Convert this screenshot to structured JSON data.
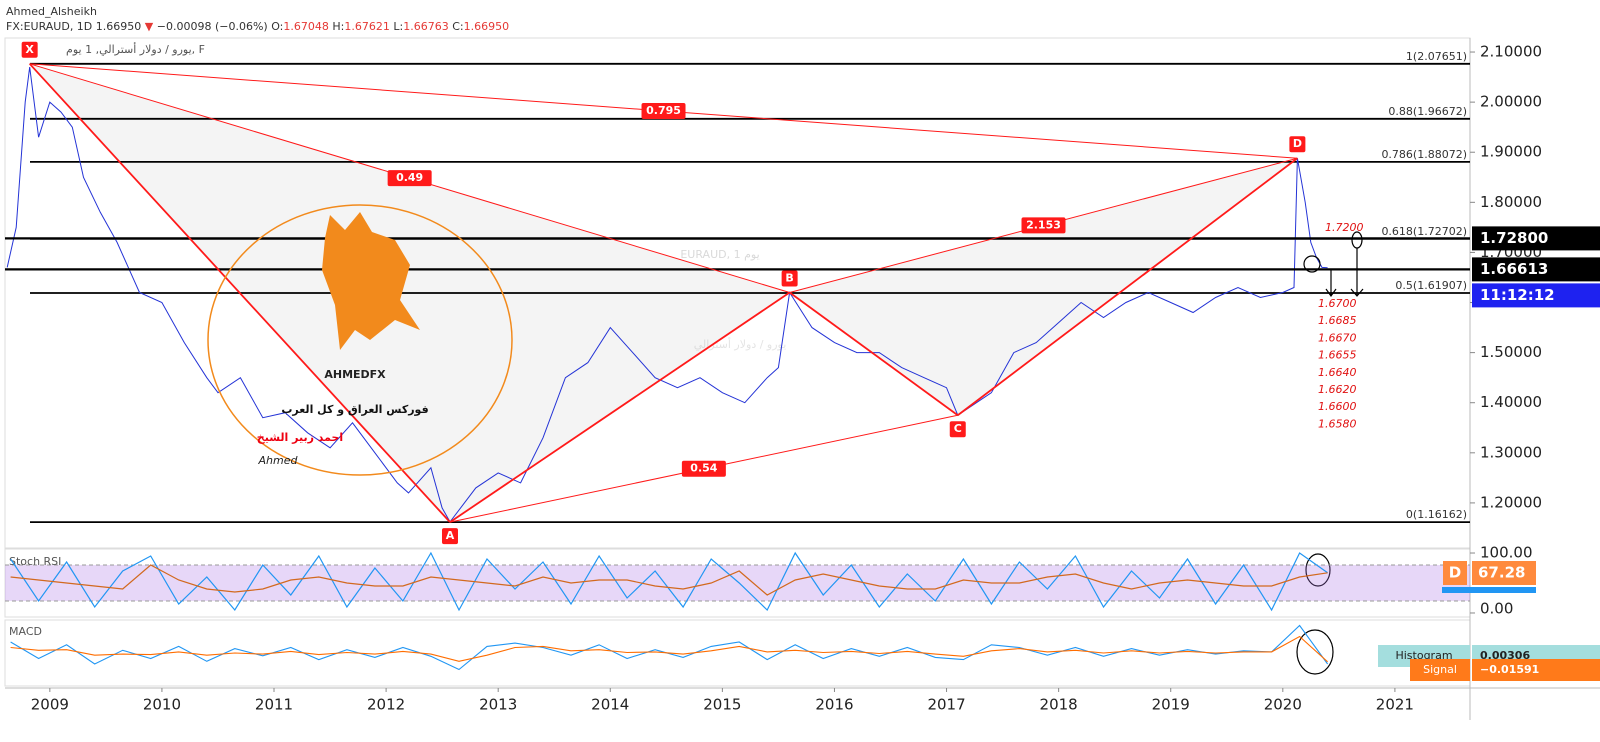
{
  "header": {
    "author": "Ahmed_Alsheikh",
    "symbol": "FX:EURAUD, 1D",
    "last": "1.66950",
    "arrow": "▼",
    "change": "−0.00098 (−0.06%)",
    "ohlc": [
      {
        "label": "O:",
        "value": "1.67048"
      },
      {
        "label": "H:",
        "value": "1.67621"
      },
      {
        "label": "L:",
        "value": "1.66763"
      },
      {
        "label": "C:",
        "value": "1.66950"
      }
    ]
  },
  "logo": {
    "brand": "AHMEDFX",
    "tagline": "فوركس العراق و كل العرب",
    "name": "احمد زبير الشيخ",
    "signature": "Ahmed"
  },
  "chart_data": [
    {
      "type": "line",
      "legend_text": "يورو / دولار أسترالي, 1 يوم, F",
      "watermark": [
        "EURAUD, 1 يوم",
        "يورو / دولار أسترالي"
      ],
      "x": [
        2008.62,
        2008.7,
        2008.78,
        2008.82,
        2008.9,
        2009.0,
        2009.1,
        2009.2,
        2009.3,
        2009.45,
        2009.6,
        2009.8,
        2010.0,
        2010.2,
        2010.4,
        2010.5,
        2010.7,
        2010.9,
        2011.1,
        2011.3,
        2011.5,
        2011.7,
        2011.9,
        2012.1,
        2012.2,
        2012.4,
        2012.5,
        2012.57,
        2012.8,
        2013.0,
        2013.2,
        2013.4,
        2013.6,
        2013.8,
        2014.0,
        2014.2,
        2014.4,
        2014.6,
        2014.8,
        2015.0,
        2015.2,
        2015.4,
        2015.5,
        2015.6,
        2015.8,
        2016.0,
        2016.2,
        2016.4,
        2016.6,
        2016.8,
        2017.0,
        2017.1,
        2017.4,
        2017.6,
        2017.8,
        2018.0,
        2018.2,
        2018.4,
        2018.6,
        2018.8,
        2019.0,
        2019.2,
        2019.4,
        2019.6,
        2019.8,
        2020.0,
        2020.1,
        2020.13,
        2020.2,
        2020.25,
        2020.3,
        2020.35,
        2020.4
      ],
      "series": [
        {
          "color": "#2433d6",
          "values": [
            1.67,
            1.75,
            2.0,
            2.07,
            1.93,
            2.0,
            1.98,
            1.95,
            1.85,
            1.78,
            1.72,
            1.62,
            1.6,
            1.52,
            1.45,
            1.42,
            1.45,
            1.37,
            1.38,
            1.34,
            1.31,
            1.36,
            1.3,
            1.24,
            1.22,
            1.27,
            1.19,
            1.162,
            1.23,
            1.26,
            1.24,
            1.33,
            1.45,
            1.48,
            1.55,
            1.5,
            1.45,
            1.43,
            1.45,
            1.42,
            1.4,
            1.45,
            1.47,
            1.62,
            1.55,
            1.52,
            1.5,
            1.5,
            1.47,
            1.45,
            1.43,
            1.375,
            1.42,
            1.5,
            1.52,
            1.56,
            1.6,
            1.57,
            1.6,
            1.62,
            1.6,
            1.58,
            1.61,
            1.63,
            1.61,
            1.62,
            1.63,
            1.888,
            1.8,
            1.72,
            1.69,
            1.67,
            1.6695
          ]
        }
      ],
      "xlim": [
        2008.6,
        2021.67
      ],
      "xticks": [
        2009,
        2010,
        2011,
        2012,
        2013,
        2014,
        2015,
        2016,
        2017,
        2018,
        2019,
        2020,
        2021
      ],
      "ylim": [
        1.11,
        2.128
      ],
      "yticks": [
        {
          "value": 2.1,
          "label": "2.10000"
        },
        {
          "value": 2.0,
          "label": "2.00000"
        },
        {
          "value": 1.9,
          "label": "1.90000"
        },
        {
          "value": 1.8,
          "label": "1.80000"
        },
        {
          "value": 1.7,
          "label": "1.70000"
        },
        {
          "value": 1.6,
          "label": "1.60000"
        },
        {
          "value": 1.5,
          "label": "1.50000"
        },
        {
          "value": 1.4,
          "label": "1.40000"
        },
        {
          "value": 1.3,
          "label": "1.30000"
        },
        {
          "value": 1.2,
          "label": "1.20000"
        }
      ],
      "fib_levels": [
        {
          "value": 2.07651,
          "label": "1(2.07651)"
        },
        {
          "value": 1.96672,
          "label": "0.88(1.96672)"
        },
        {
          "value": 1.88072,
          "label": "0.786(1.88072)"
        },
        {
          "value": 1.72702,
          "label": "0.618(1.72702)"
        },
        {
          "value": 1.61907,
          "label": "0.5(1.61907)"
        },
        {
          "value": 1.16162,
          "label": "0(1.16162)"
        }
      ],
      "price_lines": [
        {
          "value": 1.728,
          "label": "1.72800"
        },
        {
          "value": 1.66613,
          "label": "1.66613"
        }
      ],
      "countdown": "11:12:12",
      "pattern": {
        "color": "#ff1a1a",
        "points": [
          {
            "label": "X",
            "x": 2008.82,
            "y": 2.0765
          },
          {
            "label": "A",
            "x": 2012.57,
            "y": 1.1616
          },
          {
            "label": "B",
            "x": 2015.6,
            "y": 1.62
          },
          {
            "label": "C",
            "x": 2017.1,
            "y": 1.375
          },
          {
            "label": "D",
            "x": 2020.13,
            "y": 1.888
          }
        ],
        "ratios": [
          {
            "label": "0.795",
            "from": 0,
            "to": 4
          },
          {
            "label": "0.49",
            "from": 0,
            "to": 2
          },
          {
            "label": "2.153",
            "from": 2,
            "to": 4
          },
          {
            "label": "0.54",
            "from": 1,
            "to": 3
          }
        ]
      },
      "targets": [
        "1.7200",
        "1.6700",
        "1.6685",
        "1.6670",
        "1.6655",
        "1.6640",
        "1.6620",
        "1.6600",
        "1.6580"
      ]
    },
    {
      "type": "line",
      "title": "Stoch RSI",
      "x": [
        2008.65,
        2008.9,
        2009.15,
        2009.4,
        2009.65,
        2009.9,
        2010.15,
        2010.4,
        2010.65,
        2010.9,
        2011.15,
        2011.4,
        2011.65,
        2011.9,
        2012.15,
        2012.4,
        2012.65,
        2012.9,
        2013.15,
        2013.4,
        2013.65,
        2013.9,
        2014.15,
        2014.4,
        2014.65,
        2014.9,
        2015.15,
        2015.4,
        2015.65,
        2015.9,
        2016.15,
        2016.4,
        2016.65,
        2016.9,
        2017.15,
        2017.4,
        2017.65,
        2017.9,
        2018.15,
        2018.4,
        2018.65,
        2018.9,
        2019.15,
        2019.4,
        2019.65,
        2019.9,
        2020.15,
        2020.4
      ],
      "series": [
        {
          "color": "#2196f3",
          "values": [
            90,
            20,
            85,
            10,
            70,
            95,
            15,
            60,
            5,
            80,
            30,
            95,
            10,
            75,
            20,
            100,
            5,
            90,
            40,
            85,
            15,
            95,
            25,
            70,
            10,
            90,
            50,
            5,
            100,
            30,
            80,
            10,
            65,
            20,
            90,
            15,
            85,
            40,
            95,
            10,
            70,
            25,
            90,
            15,
            80,
            5,
            100,
            67
          ]
        },
        {
          "color": "#d2691e",
          "values": [
            60,
            55,
            50,
            45,
            40,
            80,
            55,
            40,
            35,
            40,
            55,
            60,
            50,
            45,
            45,
            60,
            55,
            50,
            45,
            60,
            50,
            55,
            55,
            45,
            40,
            50,
            70,
            30,
            55,
            65,
            55,
            45,
            40,
            40,
            55,
            50,
            50,
            60,
            65,
            50,
            40,
            50,
            55,
            50,
            45,
            45,
            60,
            67
          ]
        }
      ],
      "ylim": [
        -6.7,
        106.7
      ],
      "yticks": [
        {
          "value": 100,
          "label": "100.00"
        },
        {
          "value": 0,
          "label": "0.00"
        }
      ],
      "band": [
        20,
        80
      ],
      "badges": [
        {
          "label": "D",
          "value": "67.28"
        }
      ]
    },
    {
      "type": "line",
      "title": "MACD",
      "x": [
        2008.65,
        2008.9,
        2009.15,
        2009.4,
        2009.65,
        2009.9,
        2010.15,
        2010.4,
        2010.65,
        2010.9,
        2011.15,
        2011.4,
        2011.65,
        2011.9,
        2012.15,
        2012.4,
        2012.65,
        2012.9,
        2013.15,
        2013.4,
        2013.65,
        2013.9,
        2014.15,
        2014.4,
        2014.65,
        2014.9,
        2015.15,
        2015.4,
        2015.65,
        2015.9,
        2016.15,
        2016.4,
        2016.65,
        2016.9,
        2017.15,
        2017.4,
        2017.65,
        2017.9,
        2018.15,
        2018.4,
        2018.65,
        2018.9,
        2019.15,
        2019.4,
        2019.65,
        2019.9,
        2020.15,
        2020.4
      ],
      "series": [
        {
          "color": "#2196f3",
          "values": [
            0.02,
            -0.01,
            0.015,
            -0.02,
            0.005,
            -0.01,
            0.012,
            -0.015,
            0.008,
            -0.005,
            0.01,
            -0.012,
            0.006,
            -0.008,
            0.01,
            -0.006,
            -0.03,
            0.012,
            0.018,
            0.01,
            -0.004,
            0.015,
            -0.01,
            0.006,
            -0.008,
            0.012,
            0.02,
            -0.012,
            0.015,
            -0.01,
            0.008,
            -0.006,
            0.01,
            -0.008,
            -0.012,
            0.015,
            0.01,
            -0.004,
            0.01,
            -0.006,
            0.008,
            -0.004,
            0.006,
            -0.002,
            0.004,
            0.002,
            0.05,
            -0.02
          ]
        },
        {
          "color": "#ff6d00",
          "values": [
            0.01,
            0.005,
            0.006,
            -0.004,
            -0.002,
            -0.003,
            0.002,
            -0.004,
            0,
            -0.002,
            0.003,
            -0.003,
            0.001,
            -0.002,
            0.003,
            -0.002,
            -0.015,
            -0.004,
            0.01,
            0.012,
            0.004,
            0.006,
            0.001,
            0.002,
            -0.002,
            0.004,
            0.012,
            0.002,
            0.005,
            0.001,
            0.003,
            -0.001,
            0.003,
            -0.002,
            -0.006,
            0.004,
            0.008,
            0.002,
            0.005,
            0,
            0.004,
            0,
            0.003,
            0,
            0.002,
            0.002,
            0.03,
            -0.016
          ]
        }
      ],
      "ylim": [
        -0.06,
        0.06
      ],
      "badges": [
        {
          "label": "Histogram",
          "value": "0.00306"
        },
        {
          "label": "Signal",
          "value": "−0.01591"
        }
      ]
    }
  ]
}
